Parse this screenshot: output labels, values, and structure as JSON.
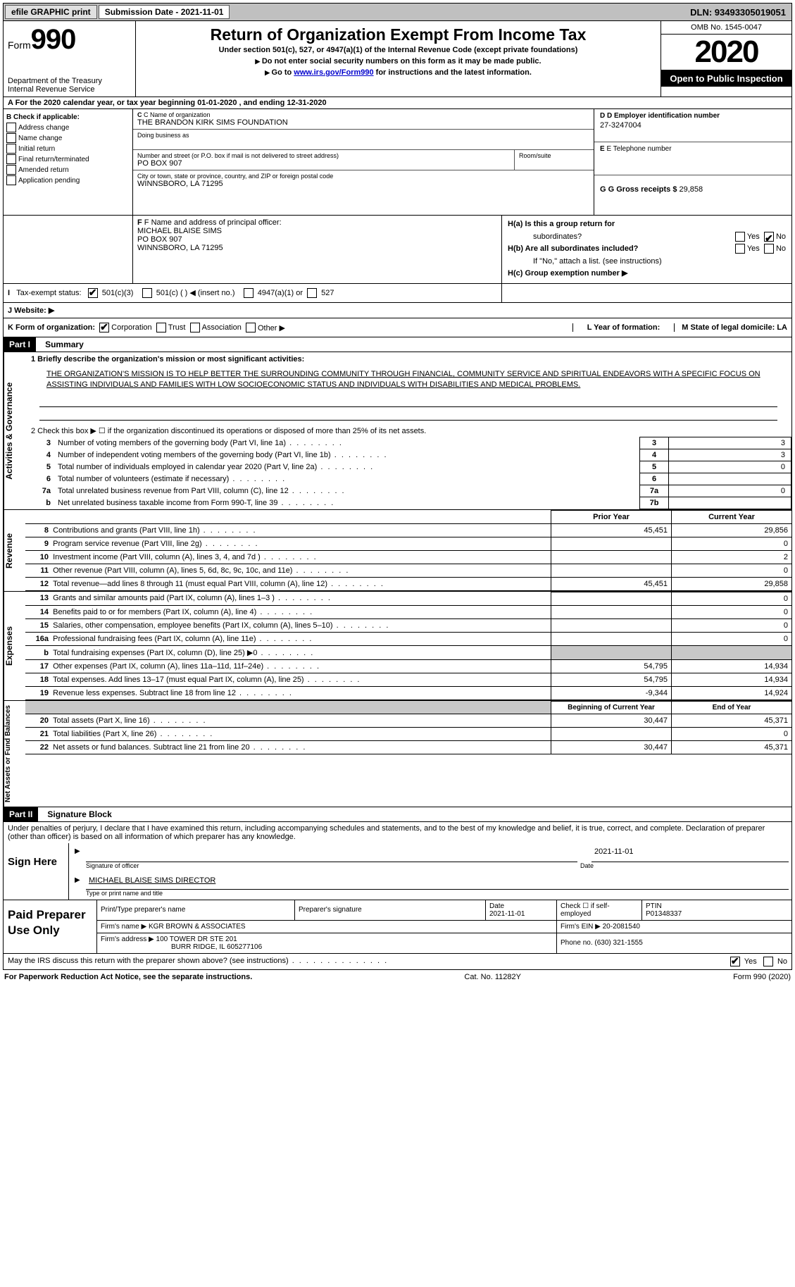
{
  "topbar": {
    "efile": "efile GRAPHIC print",
    "submission": "Submission Date - 2021-11-01",
    "dln": "DLN: 93493305019051"
  },
  "header": {
    "form_word": "Form",
    "form_num": "990",
    "dept1": "Department of the Treasury",
    "dept2": "Internal Revenue Service",
    "title": "Return of Organization Exempt From Income Tax",
    "sub": "Under section 501(c), 527, or 4947(a)(1) of the Internal Revenue Code (except private foundations)",
    "note1": "Do not enter social security numbers on this form as it may be made public.",
    "note2_pre": "Go to ",
    "note2_link": "www.irs.gov/Form990",
    "note2_post": " for instructions and the latest information.",
    "omb": "OMB No. 1545-0047",
    "year": "2020",
    "open": "Open to Public Inspection"
  },
  "row_a": "A For the 2020 calendar year, or tax year beginning 01-01-2020   , and ending 12-31-2020",
  "box_b": {
    "title": "B Check if applicable:",
    "items": [
      "Address change",
      "Name change",
      "Initial return",
      "Final return/terminated",
      "Amended return",
      "Application pending"
    ]
  },
  "box_c": {
    "name_lbl": "C Name of organization",
    "name": "THE BRANDON KIRK SIMS FOUNDATION",
    "dba_lbl": "Doing business as",
    "addr_lbl": "Number and street (or P.O. box if mail is not delivered to street address)",
    "room_lbl": "Room/suite",
    "addr": "PO BOX 907",
    "city_lbl": "City or town, state or province, country, and ZIP or foreign postal code",
    "city": "WINNSBORO, LA  71295"
  },
  "box_d": {
    "ein_lbl": "D Employer identification number",
    "ein": "27-3247004",
    "tel_lbl": "E Telephone number",
    "gross_lbl": "G Gross receipts $",
    "gross": "29,858"
  },
  "box_f": {
    "lbl": "F Name and address of principal officer:",
    "l1": "MICHAEL BLAISE SIMS",
    "l2": "PO BOX 907",
    "l3": "WINNSBORO, LA  71295"
  },
  "box_h": {
    "a_lbl": "H(a)  Is this a group return for",
    "a_sub": "subordinates?",
    "b_lbl": "H(b)  Are all subordinates included?",
    "b_note": "If \"No,\" attach a list. (see instructions)",
    "c_lbl": "H(c)  Group exemption number ▶",
    "yes": "Yes",
    "no": "No"
  },
  "tax_status": {
    "lbl": "Tax-exempt status:",
    "o1": "501(c)(3)",
    "o2": "501(c) (  ) ◀ (insert no.)",
    "o3": "4947(a)(1) or",
    "o4": "527"
  },
  "website_lbl": "J   Website: ▶",
  "row_k": {
    "lbl": "K Form of organization:",
    "o1": "Corporation",
    "o2": "Trust",
    "o3": "Association",
    "o4": "Other ▶",
    "l_lbl": "L Year of formation:",
    "m_lbl": "M State of legal domicile: LA"
  },
  "part1": {
    "hdr": "Part I",
    "title": "Summary"
  },
  "gov": {
    "side": "Activities & Governance",
    "l1": "1  Briefly describe the organization's mission or most significant activities:",
    "mission": "THE ORGANIZATION'S MISSION IS TO HELP BETTER THE SURROUNDING COMMUNITY THROUGH FINANCIAL, COMMUNITY SERVICE AND SPIRITUAL ENDEAVORS WITH A SPECIFIC FOCUS ON ASSISTING INDIVIDUALS AND FAMILIES WITH LOW SOCIOECONOMIC STATUS AND INDIVIDUALS WITH DISABILITIES AND MEDICAL PROBLEMS.",
    "l2": "2   Check this box ▶ ☐  if the organization discontinued its operations or disposed of more than 25% of its net assets.",
    "rows": [
      {
        "n": "3",
        "t": "Number of voting members of the governing body (Part VI, line 1a)",
        "box": "3",
        "v": "3"
      },
      {
        "n": "4",
        "t": "Number of independent voting members of the governing body (Part VI, line 1b)",
        "box": "4",
        "v": "3"
      },
      {
        "n": "5",
        "t": "Total number of individuals employed in calendar year 2020 (Part V, line 2a)",
        "box": "5",
        "v": "0"
      },
      {
        "n": "6",
        "t": "Total number of volunteers (estimate if necessary)",
        "box": "6",
        "v": ""
      },
      {
        "n": "7a",
        "t": "Total unrelated business revenue from Part VIII, column (C), line 12",
        "box": "7a",
        "v": "0"
      },
      {
        "n": "b",
        "t": "Net unrelated business taxable income from Form 990-T, line 39",
        "box": "7b",
        "v": ""
      }
    ]
  },
  "revenue": {
    "side": "Revenue",
    "hdr_prior": "Prior Year",
    "hdr_curr": "Current Year",
    "rows": [
      {
        "n": "8",
        "t": "Contributions and grants (Part VIII, line 1h)",
        "p": "45,451",
        "c": "29,856"
      },
      {
        "n": "9",
        "t": "Program service revenue (Part VIII, line 2g)",
        "p": "",
        "c": "0"
      },
      {
        "n": "10",
        "t": "Investment income (Part VIII, column (A), lines 3, 4, and 7d )",
        "p": "",
        "c": "2"
      },
      {
        "n": "11",
        "t": "Other revenue (Part VIII, column (A), lines 5, 6d, 8c, 9c, 10c, and 11e)",
        "p": "",
        "c": "0"
      },
      {
        "n": "12",
        "t": "Total revenue—add lines 8 through 11 (must equal Part VIII, column (A), line 12)",
        "p": "45,451",
        "c": "29,858"
      }
    ]
  },
  "expenses": {
    "side": "Expenses",
    "rows": [
      {
        "n": "13",
        "t": "Grants and similar amounts paid (Part IX, column (A), lines 1–3 )",
        "p": "",
        "c": "0"
      },
      {
        "n": "14",
        "t": "Benefits paid to or for members (Part IX, column (A), line 4)",
        "p": "",
        "c": "0"
      },
      {
        "n": "15",
        "t": "Salaries, other compensation, employee benefits (Part IX, column (A), lines 5–10)",
        "p": "",
        "c": "0"
      },
      {
        "n": "16a",
        "t": "Professional fundraising fees (Part IX, column (A), line 11e)",
        "p": "",
        "c": "0"
      },
      {
        "n": "b",
        "t": "Total fundraising expenses (Part IX, column (D), line 25) ▶0",
        "p": "SHADE",
        "c": "SHADE"
      },
      {
        "n": "17",
        "t": "Other expenses (Part IX, column (A), lines 11a–11d, 11f–24e)",
        "p": "54,795",
        "c": "14,934"
      },
      {
        "n": "18",
        "t": "Total expenses. Add lines 13–17 (must equal Part IX, column (A), line 25)",
        "p": "54,795",
        "c": "14,934"
      },
      {
        "n": "19",
        "t": "Revenue less expenses. Subtract line 18 from line 12",
        "p": "-9,344",
        "c": "14,924"
      }
    ]
  },
  "netassets": {
    "side": "Net Assets or Fund Balances",
    "hdr_beg": "Beginning of Current Year",
    "hdr_end": "End of Year",
    "rows": [
      {
        "n": "20",
        "t": "Total assets (Part X, line 16)",
        "p": "30,447",
        "c": "45,371"
      },
      {
        "n": "21",
        "t": "Total liabilities (Part X, line 26)",
        "p": "",
        "c": "0"
      },
      {
        "n": "22",
        "t": "Net assets or fund balances. Subtract line 21 from line 20",
        "p": "30,447",
        "c": "45,371"
      }
    ]
  },
  "part2": {
    "hdr": "Part II",
    "title": "Signature Block"
  },
  "sig": {
    "perjury": "Under penalties of perjury, I declare that I have examined this return, including accompanying schedules and statements, and to the best of my knowledge and belief, it is true, correct, and complete. Declaration of preparer (other than officer) is based on all information of which preparer has any knowledge.",
    "sign_here": "Sign Here",
    "date": "2021-11-01",
    "sig_lbl": "Signature of officer",
    "date_lbl": "Date",
    "name": "MICHAEL BLAISE SIMS  DIRECTOR",
    "name_lbl": "Type or print name and title"
  },
  "prep": {
    "title": "Paid Preparer Use Only",
    "h1": "Print/Type preparer's name",
    "h2": "Preparer's signature",
    "h3": "Date",
    "h4": "Check ☐ if self-employed",
    "h5": "PTIN",
    "date": "2021-11-01",
    "ptin": "P01348337",
    "firm_lbl": "Firm's name    ▶",
    "firm": "KGR BROWN & ASSOCIATES",
    "ein_lbl": "Firm's EIN ▶",
    "ein": "20-2081540",
    "addr_lbl": "Firm's address ▶",
    "addr1": "100 TOWER DR STE 201",
    "addr2": "BURR RIDGE, IL  605277106",
    "phone_lbl": "Phone no.",
    "phone": "(630) 321-1555"
  },
  "discuss": {
    "q": "May the IRS discuss this return with the preparer shown above? (see instructions)",
    "yes": "Yes",
    "no": "No"
  },
  "footer": {
    "left": "For Paperwork Reduction Act Notice, see the separate instructions.",
    "mid": "Cat. No. 11282Y",
    "right": "Form 990 (2020)"
  }
}
